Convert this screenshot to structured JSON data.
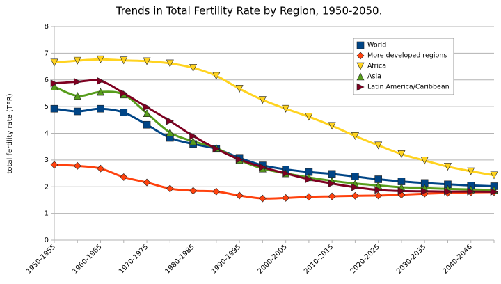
{
  "chart_data": {
    "type": "line",
    "title": "Trends in Total Fertility Rate by Region, 1950-2050.",
    "y_label": "total fertility rate (TFR)",
    "categories": [
      "1950-1955",
      null,
      "1960-1965",
      null,
      "1970-1975",
      null,
      "1980-1985",
      null,
      "1990-1995",
      null,
      "2000-2005",
      null,
      "2010-2015",
      null,
      "2020-2025",
      null,
      "2030-2035",
      null,
      "2040-2046",
      null
    ],
    "ylim": [
      0,
      8
    ],
    "yticks": [
      0,
      1,
      2,
      3,
      4,
      5,
      6,
      7,
      8
    ],
    "grid": true,
    "legend": "top-right",
    "series": [
      {
        "name": "World",
        "color": "#004586",
        "marker": "square",
        "values": [
          4.92,
          4.82,
          4.92,
          4.78,
          4.32,
          3.83,
          3.6,
          3.42,
          3.08,
          2.8,
          2.65,
          2.55,
          2.48,
          2.38,
          2.28,
          2.2,
          2.14,
          2.09,
          2.05,
          2.02
        ]
      },
      {
        "name": "More developed regions",
        "color": "#ff420e",
        "marker": "diamond",
        "values": [
          2.82,
          2.78,
          2.68,
          2.36,
          2.16,
          1.93,
          1.85,
          1.82,
          1.67,
          1.56,
          1.58,
          1.62,
          1.64,
          1.66,
          1.67,
          1.7,
          1.74,
          1.77,
          1.79,
          1.8
        ]
      },
      {
        "name": "Africa",
        "color": "#ffd320",
        "marker": "triangle-down",
        "values": [
          6.65,
          6.72,
          6.77,
          6.73,
          6.7,
          6.62,
          6.45,
          6.15,
          5.67,
          5.25,
          4.92,
          4.62,
          4.28,
          3.9,
          3.55,
          3.22,
          2.98,
          2.75,
          2.58,
          2.43
        ]
      },
      {
        "name": "Asia",
        "color": "#579d1c",
        "marker": "triangle-up",
        "values": [
          5.75,
          5.4,
          5.55,
          5.45,
          4.75,
          4.03,
          3.7,
          3.45,
          3.0,
          2.68,
          2.5,
          2.35,
          2.22,
          2.12,
          2.05,
          1.98,
          1.95,
          1.92,
          1.9,
          1.88
        ]
      },
      {
        "name": "Latin America/Caribbean",
        "color": "#7e0021",
        "marker": "triangle-right",
        "values": [
          5.87,
          5.93,
          5.96,
          5.5,
          4.98,
          4.46,
          3.9,
          3.42,
          3.02,
          2.73,
          2.5,
          2.28,
          2.12,
          1.98,
          1.88,
          1.84,
          1.83,
          1.82,
          1.82,
          1.81
        ]
      }
    ]
  }
}
